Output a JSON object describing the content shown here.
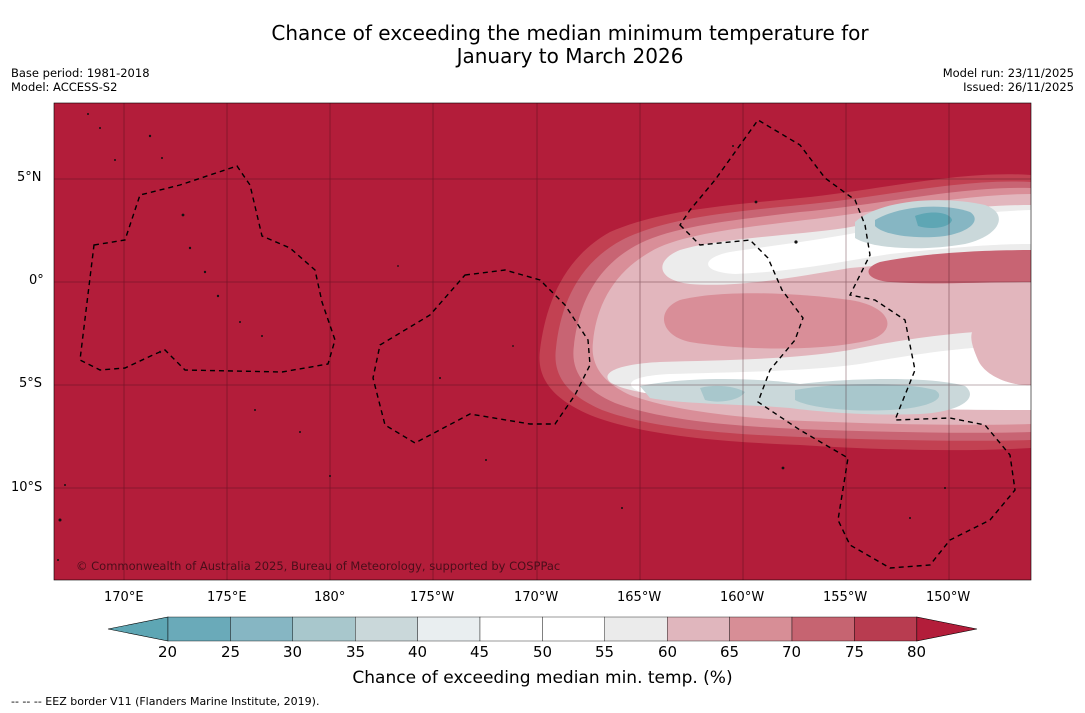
{
  "title": {
    "line1": "Chance of exceeding the median minimum temperature for",
    "line2": "January to March 2026"
  },
  "meta": {
    "base_period": "Base period: 1981-2018",
    "model": "Model: ACCESS-S2",
    "model_run": "Model run: 23/11/2025",
    "issued": "Issued: 26/11/2025"
  },
  "map": {
    "copyright": "© Commonwealth of Australia 2025, Bureau of Meteorology, supported by COSPPac",
    "lat_labels": [
      "5°N",
      "0°",
      "5°S",
      "10°S"
    ],
    "lon_labels": [
      "170°E",
      "175°E",
      "180°",
      "175°W",
      "170°W",
      "165°W",
      "160°W",
      "155°W",
      "150°W"
    ],
    "ocean_color": "#b31d3a"
  },
  "colorbar": {
    "ticks": [
      "20",
      "25",
      "30",
      "35",
      "40",
      "45",
      "50",
      "55",
      "60",
      "65",
      "70",
      "75",
      "80"
    ],
    "colors": [
      "#5ea6b4",
      "#6aaab9",
      "#86b6c3",
      "#a8c7cc",
      "#cad8da",
      "#e9eef0",
      "#ffffff",
      "#ffffff",
      "#ebebeb",
      "#e0b6bd",
      "#d78e96",
      "#c66471",
      "#b83c50",
      "#b31d3a"
    ],
    "title": "Chance of exceeding median min. temp. (%)"
  },
  "footer": "--  --  -- EEZ border V11 (Flanders Marine Institute, 2019)."
}
